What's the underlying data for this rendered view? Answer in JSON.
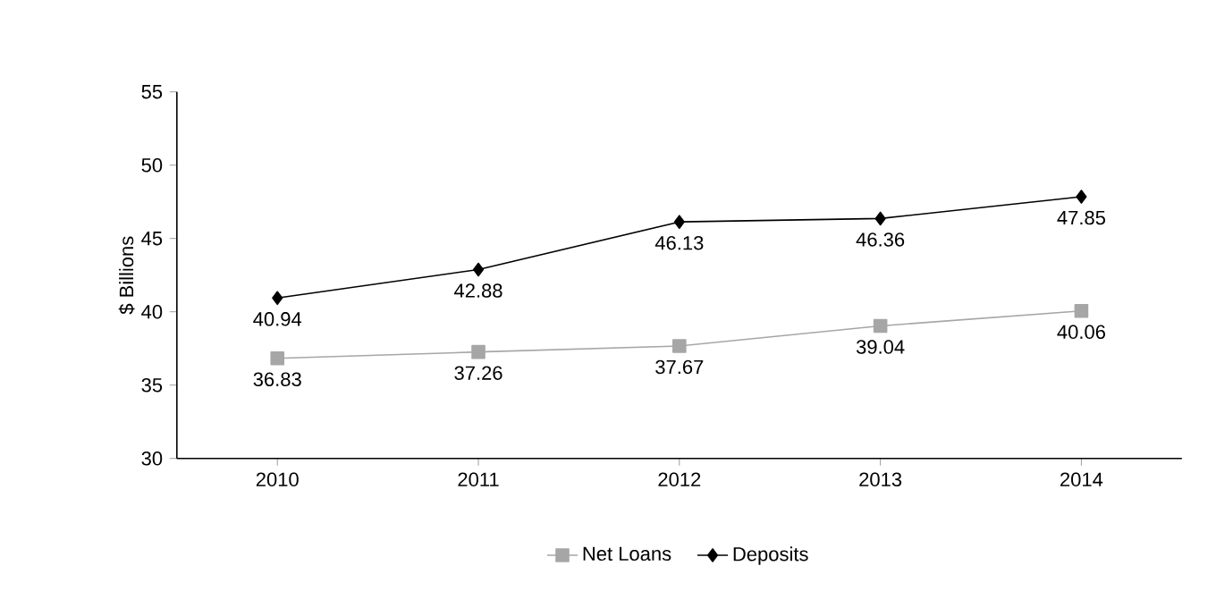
{
  "chart_data": {
    "type": "line",
    "ylabel": "$ Billions",
    "categories": [
      "2010",
      "2011",
      "2012",
      "2013",
      "2014"
    ],
    "series": [
      {
        "name": "Net Loans",
        "color": "#a6a6a6",
        "marker": "square",
        "values": [
          36.83,
          37.26,
          37.67,
          39.04,
          40.06
        ]
      },
      {
        "name": "Deposits",
        "color": "#000000",
        "marker": "diamond",
        "values": [
          40.94,
          42.88,
          46.13,
          46.36,
          47.85
        ]
      }
    ],
    "ylim": [
      30,
      55
    ],
    "yticks": [
      30,
      35,
      40,
      45,
      50,
      55
    ],
    "data_labels": true,
    "legend": "bottom",
    "grid": false,
    "line_style": "solid"
  }
}
